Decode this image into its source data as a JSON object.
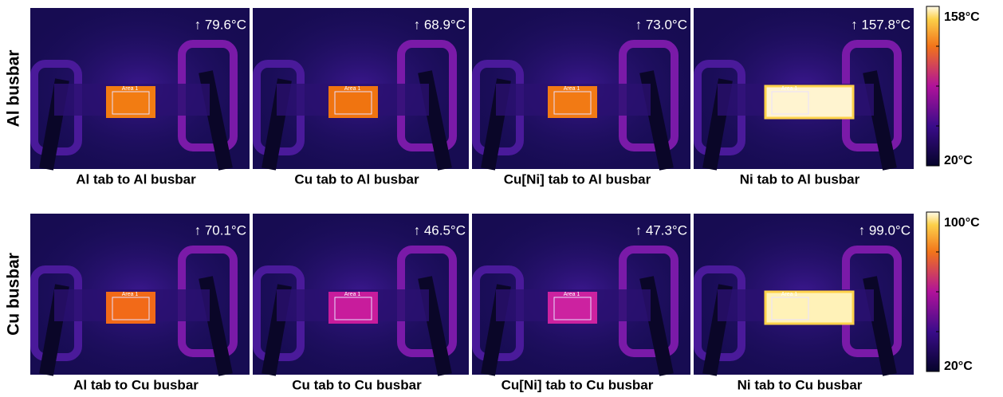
{
  "rows": [
    {
      "label": "Al busbar",
      "scale": {
        "max": "158°C",
        "min": "20°C"
      },
      "panels": [
        {
          "temp": "↑ 79.6°C",
          "area": "Area 1",
          "caption": "Al tab to Al busbar",
          "color": "#f27c12"
        },
        {
          "temp": "↑ 68.9°C",
          "area": "Area 1",
          "caption": "Cu tab to Al busbar",
          "color": "#f07410"
        },
        {
          "temp": "↑ 73.0°C",
          "area": "Area 1",
          "caption": "Cu[Ni] tab to Al busbar",
          "color": "#f27a14"
        },
        {
          "temp": "↑ 157.8°C",
          "area": "Area 1",
          "caption": "Ni tab to Al busbar",
          "color": "#fff4d0"
        }
      ]
    },
    {
      "label": "Cu busbar",
      "scale": {
        "max": "100°C",
        "min": "20°C"
      },
      "panels": [
        {
          "temp": "↑ 70.1°C",
          "area": "Area 1",
          "caption": "Al tab to Cu busbar",
          "color": "#f26a18"
        },
        {
          "temp": "↑ 46.5°C",
          "area": "Area 1",
          "caption": "Cu tab to Cu busbar",
          "color": "#c81c9c"
        },
        {
          "temp": "↑ 47.3°C",
          "area": "Area 1",
          "caption": "Cu[Ni] tab to Cu busbar",
          "color": "#cc22a0"
        },
        {
          "temp": "↑ 99.0°C",
          "area": "Area 1",
          "caption": "Ni tab to Cu busbar",
          "color": "#fff2b8"
        }
      ]
    }
  ]
}
